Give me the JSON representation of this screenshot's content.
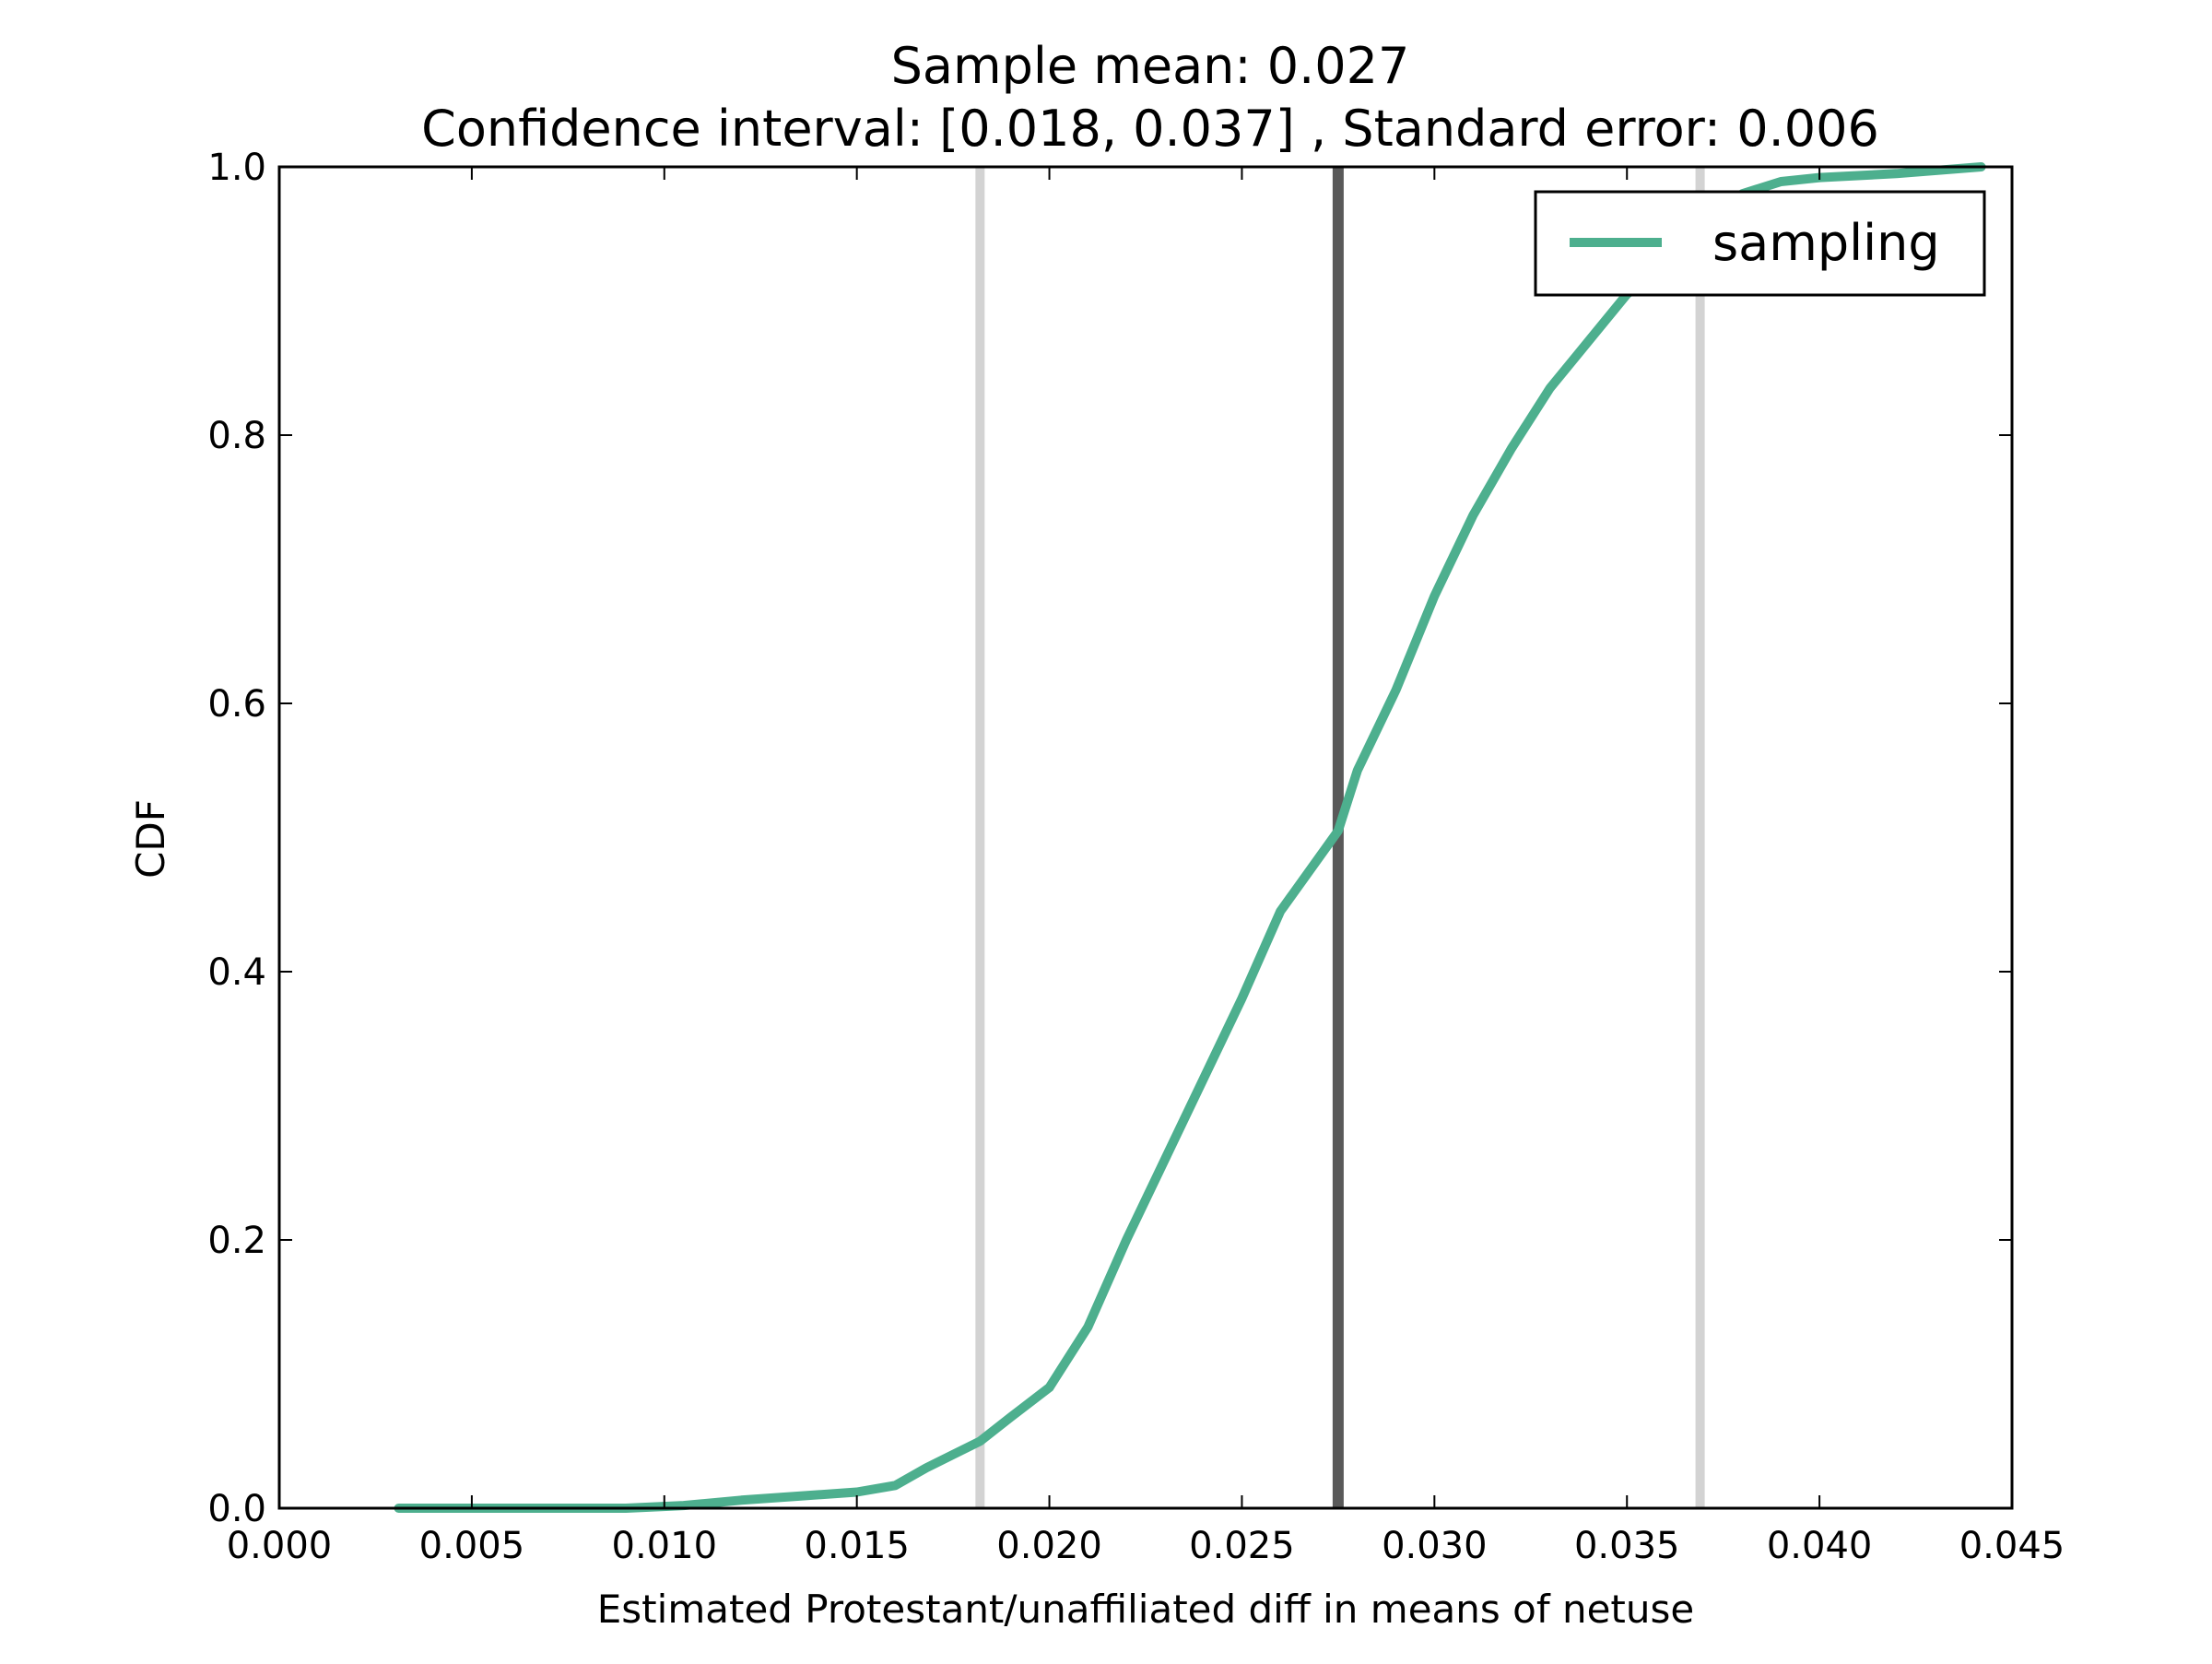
{
  "chart_data": {
    "type": "line",
    "title": "Sample mean: 0.027",
    "subtitle": "Confidence interval: [0.018, 0.037] , Standard error: 0.006",
    "xlabel": "Estimated Protestant/unaffiliated diff in means of netuse",
    "ylabel": "CDF",
    "xlim": [
      0.0,
      0.045
    ],
    "ylim": [
      0.0,
      1.0
    ],
    "xticks": [
      "0.000",
      "0.005",
      "0.010",
      "0.015",
      "0.020",
      "0.025",
      "0.030",
      "0.035",
      "0.040",
      "0.045"
    ],
    "yticks": [
      "0.0",
      "0.2",
      "0.4",
      "0.6",
      "0.8",
      "1.0"
    ],
    "grid": false,
    "legend_position": "upper right",
    "series": [
      {
        "name": "sampling",
        "color": "#4daf8e",
        "x": [
          0.0031,
          0.006,
          0.009,
          0.0105,
          0.012,
          0.0135,
          0.015,
          0.016,
          0.0168,
          0.0175,
          0.0182,
          0.019,
          0.02,
          0.021,
          0.022,
          0.023,
          0.024,
          0.025,
          0.026,
          0.027,
          0.0275,
          0.028,
          0.029,
          0.03,
          0.031,
          0.032,
          0.033,
          0.034,
          0.035,
          0.036,
          0.037,
          0.038,
          0.039,
          0.04,
          0.042,
          0.0442
        ],
        "y": [
          0.0,
          0.0,
          0.0,
          0.002,
          0.006,
          0.009,
          0.012,
          0.017,
          0.03,
          0.04,
          0.05,
          0.068,
          0.09,
          0.135,
          0.2,
          0.26,
          0.32,
          0.38,
          0.445,
          0.485,
          0.505,
          0.55,
          0.61,
          0.68,
          0.74,
          0.79,
          0.835,
          0.87,
          0.905,
          0.93,
          0.955,
          0.98,
          0.989,
          0.992,
          0.995,
          1.0
        ]
      }
    ],
    "vlines": [
      {
        "x": 0.0182,
        "color": "#d3d3d3",
        "role": "ci_low"
      },
      {
        "x": 0.0275,
        "color": "#595959",
        "role": "mean"
      },
      {
        "x": 0.0369,
        "color": "#d3d3d3",
        "role": "ci_high"
      }
    ]
  }
}
